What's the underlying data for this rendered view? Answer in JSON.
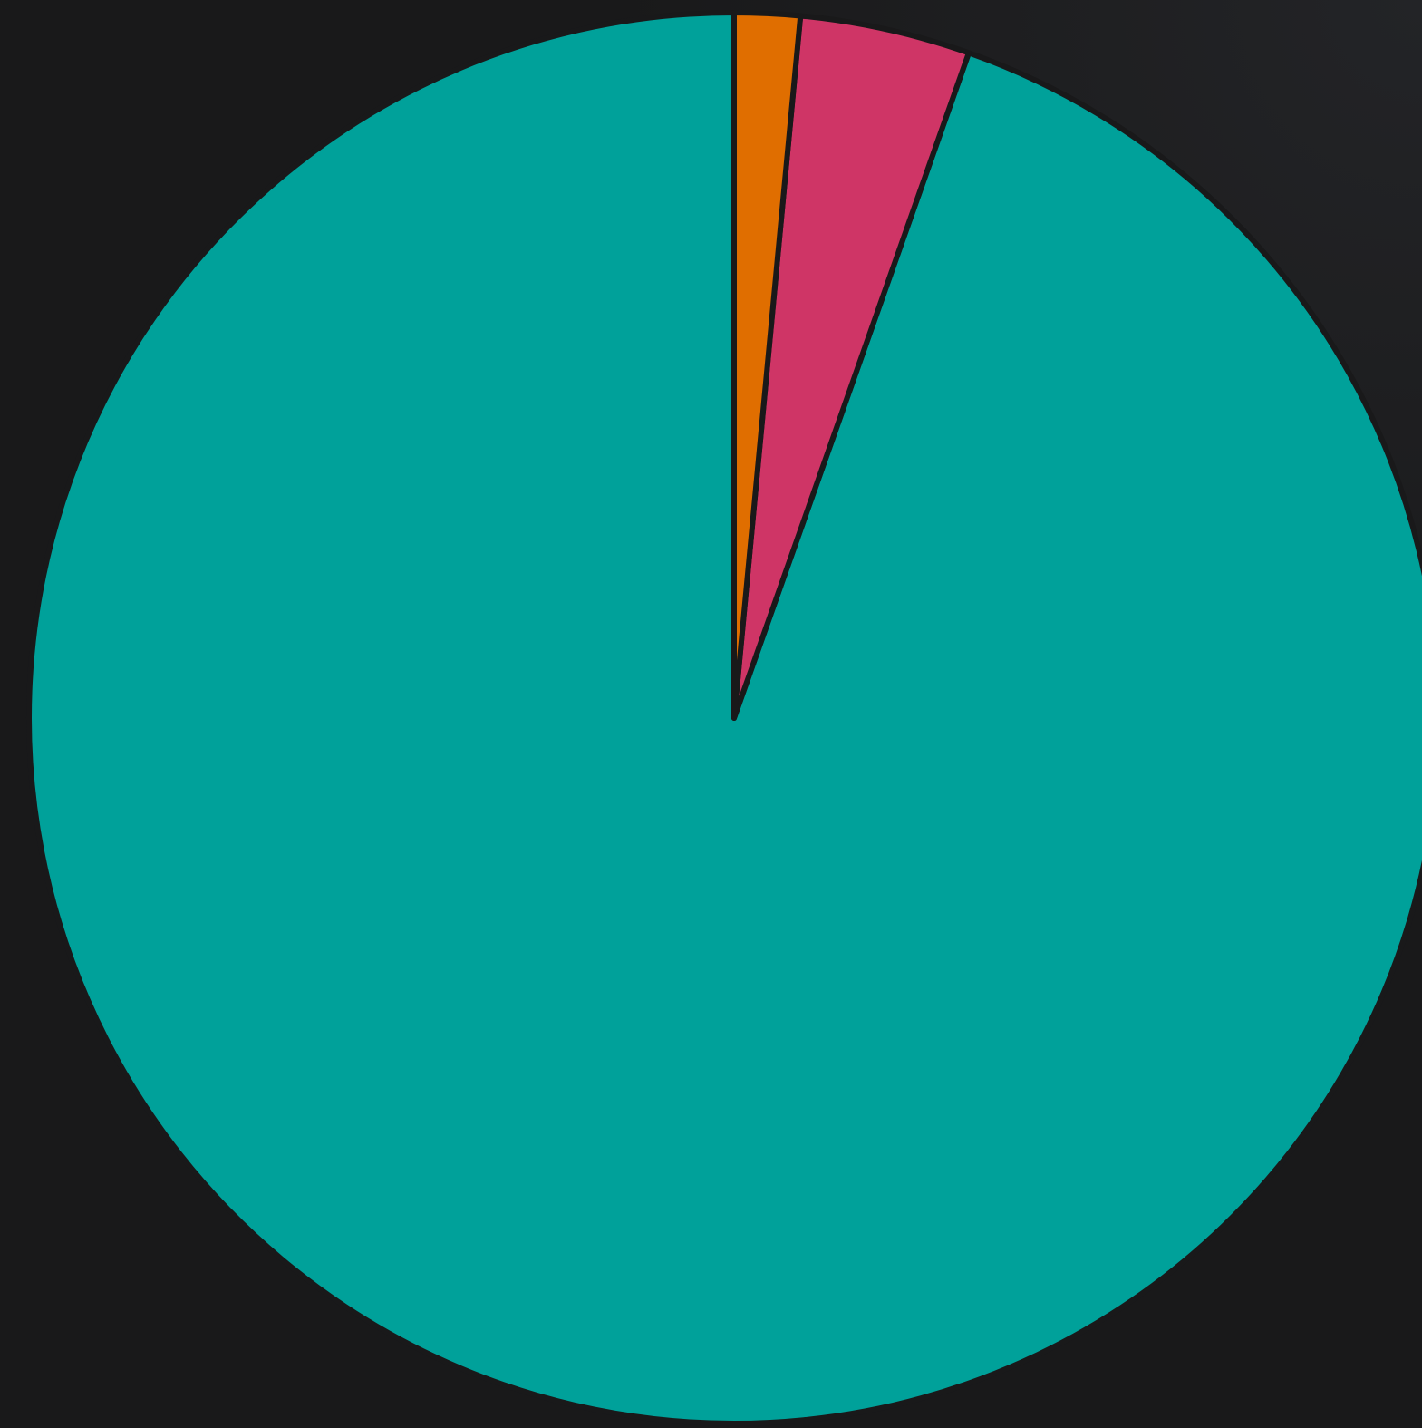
{
  "chart_data": {
    "type": "pie",
    "categories": [
      "",
      "",
      ""
    ],
    "values": [
      94.6,
      3.9,
      1.5
    ],
    "colors": [
      "#00a19a",
      "#cf3566",
      "#e06e00"
    ],
    "start": "top",
    "direction": "counterclockwise",
    "slice_border_color": "#19191a",
    "legend": "none"
  },
  "background": "#19191a"
}
